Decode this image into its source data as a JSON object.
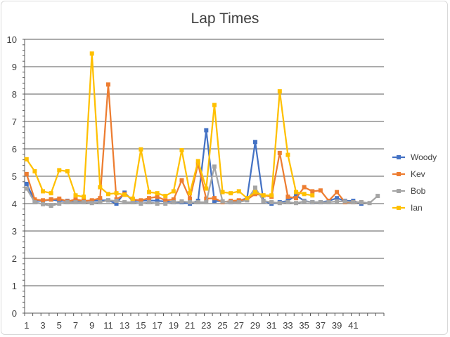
{
  "chart_data": {
    "type": "line",
    "title": "Lap Times",
    "xlabel": "",
    "ylabel": "",
    "ylim": [
      0,
      10
    ],
    "yticks": [
      0,
      1,
      2,
      3,
      4,
      5,
      6,
      7,
      8,
      9,
      10
    ],
    "x": [
      1,
      2,
      3,
      4,
      5,
      6,
      7,
      8,
      9,
      10,
      11,
      12,
      13,
      14,
      15,
      16,
      17,
      18,
      19,
      20,
      21,
      22,
      23,
      24,
      25,
      26,
      27,
      28,
      29,
      30,
      31,
      32,
      33,
      34,
      35,
      36,
      37,
      38,
      39,
      40,
      41,
      42,
      43,
      44
    ],
    "xtick_labels": [
      1,
      3,
      5,
      7,
      9,
      11,
      13,
      15,
      17,
      19,
      21,
      23,
      25,
      27,
      29,
      31,
      33,
      35,
      37,
      39,
      41
    ],
    "grid": "horizontal",
    "legend_position": "right",
    "series": [
      {
        "name": "Woody",
        "color": "#4472c4",
        "values": [
          4.72,
          4.1,
          4.1,
          4.15,
          4.1,
          4.1,
          4.1,
          4.1,
          4.1,
          4.12,
          4.12,
          4.0,
          4.4,
          4.1,
          4.1,
          4.12,
          4.1,
          4.08,
          4.05,
          4.05,
          4.0,
          4.1,
          6.68,
          4.1,
          4.08,
          4.05,
          4.1,
          4.2,
          6.25,
          4.1,
          4.0,
          4.05,
          4.1,
          4.3,
          4.1,
          4.05,
          4.05,
          4.1,
          4.2,
          4.1,
          4.1,
          4.0,
          null,
          null
        ]
      },
      {
        "name": "Kev",
        "color": "#ed7d31",
        "values": [
          5.08,
          4.15,
          4.12,
          4.15,
          4.18,
          4.08,
          4.15,
          4.1,
          4.12,
          4.2,
          8.35,
          4.15,
          4.35,
          4.15,
          4.12,
          4.2,
          4.25,
          4.12,
          4.15,
          4.85,
          4.18,
          5.45,
          4.18,
          4.2,
          4.05,
          4.1,
          4.12,
          4.15,
          4.35,
          4.3,
          4.25,
          5.85,
          4.25,
          4.2,
          4.6,
          4.45,
          4.48,
          4.1,
          4.42,
          4.05,
          4.05,
          4.05,
          null,
          null
        ]
      },
      {
        "name": "Bob",
        "color": "#a5a5a5",
        "values": [
          4.55,
          4.05,
          3.98,
          3.92,
          4.0,
          4.05,
          4.05,
          4.05,
          4.02,
          4.05,
          4.12,
          4.1,
          4.05,
          4.05,
          4.0,
          4.05,
          4.0,
          4.0,
          4.05,
          4.08,
          4.05,
          4.05,
          4.05,
          5.35,
          4.08,
          4.05,
          4.05,
          4.12,
          4.58,
          4.1,
          4.05,
          4.02,
          4.05,
          4.02,
          4.08,
          4.05,
          4.05,
          4.05,
          4.08,
          4.08,
          4.05,
          4.05,
          4.02,
          4.28
        ]
      },
      {
        "name": "Ian",
        "color": "#ffc000",
        "values": [
          5.62,
          5.18,
          4.45,
          4.38,
          5.22,
          5.18,
          4.3,
          4.25,
          9.48,
          4.6,
          4.35,
          4.38,
          4.32,
          4.18,
          5.98,
          4.42,
          4.38,
          4.28,
          4.45,
          5.95,
          4.38,
          5.55,
          4.55,
          7.6,
          4.42,
          4.38,
          4.45,
          4.2,
          4.42,
          4.3,
          4.3,
          8.1,
          5.78,
          4.42,
          4.35,
          4.3,
          null,
          null,
          null,
          null,
          null,
          null,
          null,
          null
        ]
      }
    ]
  }
}
